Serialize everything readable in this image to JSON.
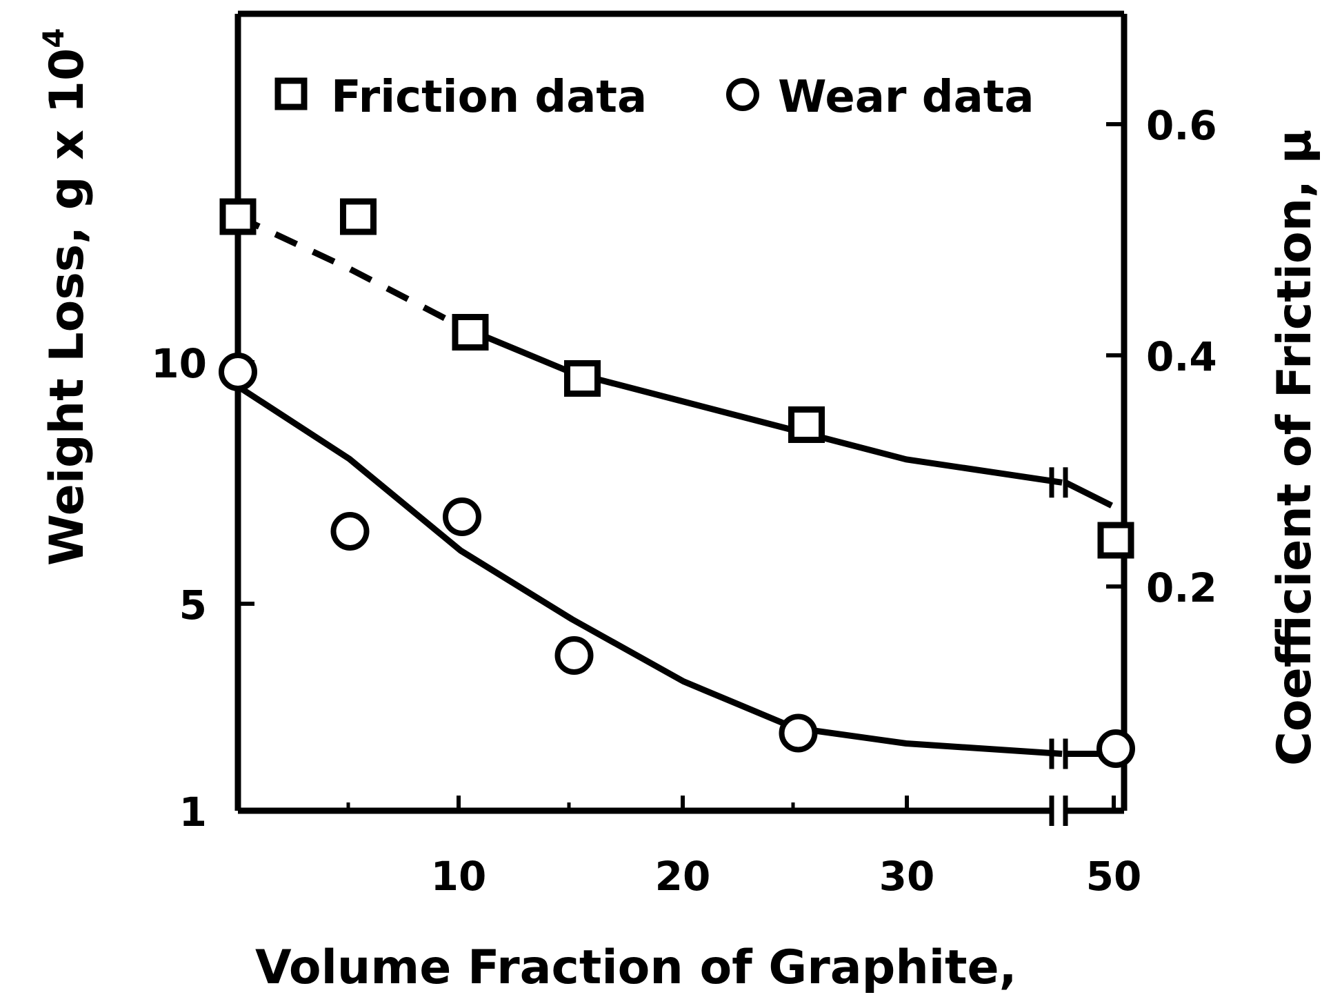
{
  "chart_data": {
    "type": "scatter",
    "xlabel": "Volume Fraction of Graphite,",
    "ylabel_left": "Weight Loss, g x 10",
    "ylabel_left_exponent": "4",
    "ylabel_right": "Coefficient of Friction, μ",
    "x_ticks": [
      "10",
      "20",
      "30",
      "50"
    ],
    "y_left_ticks": [
      "1",
      "5",
      "10"
    ],
    "y_right_ticks": [
      "0.2",
      "0.4",
      "0.6"
    ],
    "y_left_lim": [
      1,
      18
    ],
    "y_right_lim": [
      0.05,
      0.65
    ],
    "x_axis_break": "between 30 and 50",
    "legend": {
      "placement": "top",
      "entries": [
        {
          "label": "Friction data",
          "marker": "square",
          "axis": "right"
        },
        {
          "label": "Wear data",
          "marker": "circle",
          "axis": "left"
        }
      ]
    },
    "series": [
      {
        "name": "Friction data",
        "axis": "right",
        "marker": "square",
        "x": [
          0,
          5,
          10,
          15,
          25,
          50
        ],
        "y": [
          0.52,
          0.52,
          0.42,
          0.38,
          0.34,
          0.24
        ]
      },
      {
        "name": "Wear data",
        "axis": "left",
        "marker": "circle",
        "x": [
          0,
          5,
          10,
          15,
          25,
          50
        ],
        "y": [
          9.8,
          6.5,
          6.8,
          4.0,
          2.5,
          2.2
        ]
      }
    ],
    "fit_curves": [
      {
        "series": "Friction data",
        "axis": "right",
        "x": [
          0,
          5,
          10,
          15,
          20,
          25,
          30,
          37,
          50
        ],
        "y": [
          0.52,
          0.475,
          0.425,
          0.385,
          0.36,
          0.335,
          0.31,
          0.29,
          0.27
        ],
        "dashed_until_x": 10
      },
      {
        "series": "Wear data",
        "axis": "left",
        "x": [
          0,
          5,
          10,
          15,
          20,
          25,
          30,
          37,
          50
        ],
        "y": [
          9.5,
          8.0,
          6.1,
          4.7,
          3.5,
          2.6,
          2.3,
          2.1,
          2.1
        ]
      }
    ],
    "grid": false,
    "colors": {
      "line": "#000000",
      "background": "#ffffff"
    }
  }
}
